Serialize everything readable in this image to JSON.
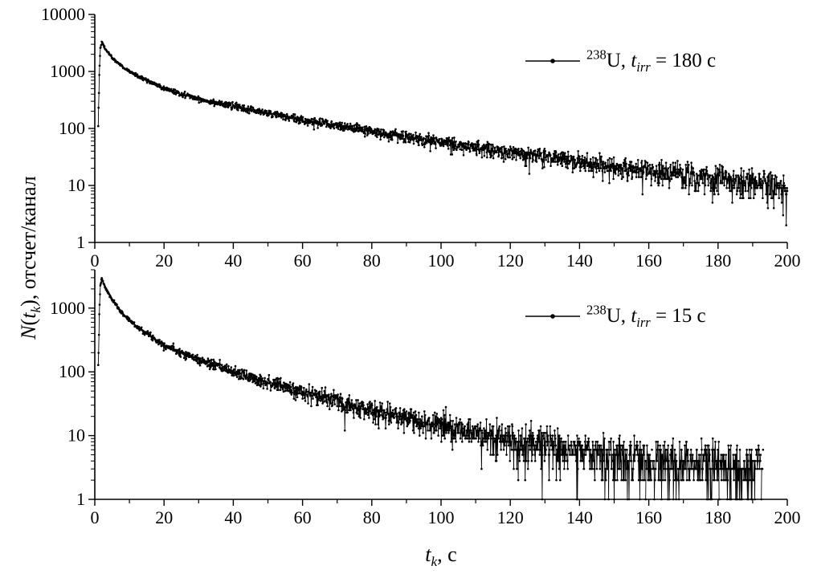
{
  "figure": {
    "background": "#ffffff",
    "line_color": "#000000"
  },
  "ylabel": {
    "n": "N",
    "open": "(",
    "t": "t",
    "k": "k",
    "close": ")",
    "rest": ", отсчет/канал"
  },
  "xlabel": {
    "t": "t",
    "k": "k",
    "rest": ", с"
  },
  "chart_data": [
    {
      "type": "scatter",
      "title": "238U, t_irr = 180 c (delayed-neutron decay curve, log scale)",
      "legend": {
        "mass": "238",
        "element": "U, ",
        "var": "t",
        "sub": "irr",
        "eq": " = 180 с"
      },
      "xlabel": "t_k, с",
      "ylabel": "N(t_k), отсчет/канал",
      "xlim": [
        0,
        200
      ],
      "ylim": [
        1,
        10000
      ],
      "x_ticks": [
        0,
        20,
        40,
        60,
        80,
        100,
        120,
        140,
        160,
        180,
        200
      ],
      "x_minor_step": 10,
      "y_ticks": [
        1,
        10,
        100,
        1000,
        10000
      ],
      "grid": false,
      "legend_position": "top-right",
      "anchors": {
        "t": [
          1.0,
          1.3,
          1.6,
          2.0,
          3,
          5,
          8,
          12,
          20,
          30,
          40,
          60,
          80,
          100,
          120,
          140,
          160,
          180,
          200
        ],
        "N": [
          120,
          900,
          2600,
          3300,
          2500,
          1750,
          1200,
          850,
          500,
          330,
          245,
          140,
          88,
          57,
          38,
          26,
          18,
          13,
          9.5
        ]
      },
      "t_start": 1.0,
      "t_end": 200,
      "dt": 0.1,
      "seed": 42
    },
    {
      "type": "scatter",
      "title": "238U, t_irr = 15 c (delayed-neutron decay curve, log scale)",
      "legend": {
        "mass": "238",
        "element": "U, ",
        "var": "t",
        "sub": "irr",
        "eq": " = 15 с"
      },
      "xlabel": "t_k, с",
      "ylabel": "N(t_k), отсчет/канал",
      "xlim": [
        0,
        200
      ],
      "ylim": [
        1,
        4000
      ],
      "x_ticks": [
        0,
        20,
        40,
        60,
        80,
        100,
        120,
        140,
        160,
        180,
        200
      ],
      "x_minor_step": 10,
      "y_ticks": [
        1,
        10,
        100,
        1000
      ],
      "grid": false,
      "legend_position": "top-right",
      "anchors": {
        "t": [
          1.0,
          1.3,
          1.6,
          2.0,
          3,
          5,
          8,
          12,
          20,
          30,
          40,
          60,
          80,
          100,
          120,
          140,
          160,
          180,
          193
        ],
        "N": [
          100,
          800,
          2300,
          2900,
          2100,
          1350,
          820,
          520,
          265,
          155,
          100,
          48,
          26,
          14.5,
          8.5,
          5.8,
          4.3,
          3.4,
          3.0
        ]
      },
      "t_start": 1.0,
      "t_end": 193,
      "dt": 0.1,
      "seed": 7
    }
  ]
}
